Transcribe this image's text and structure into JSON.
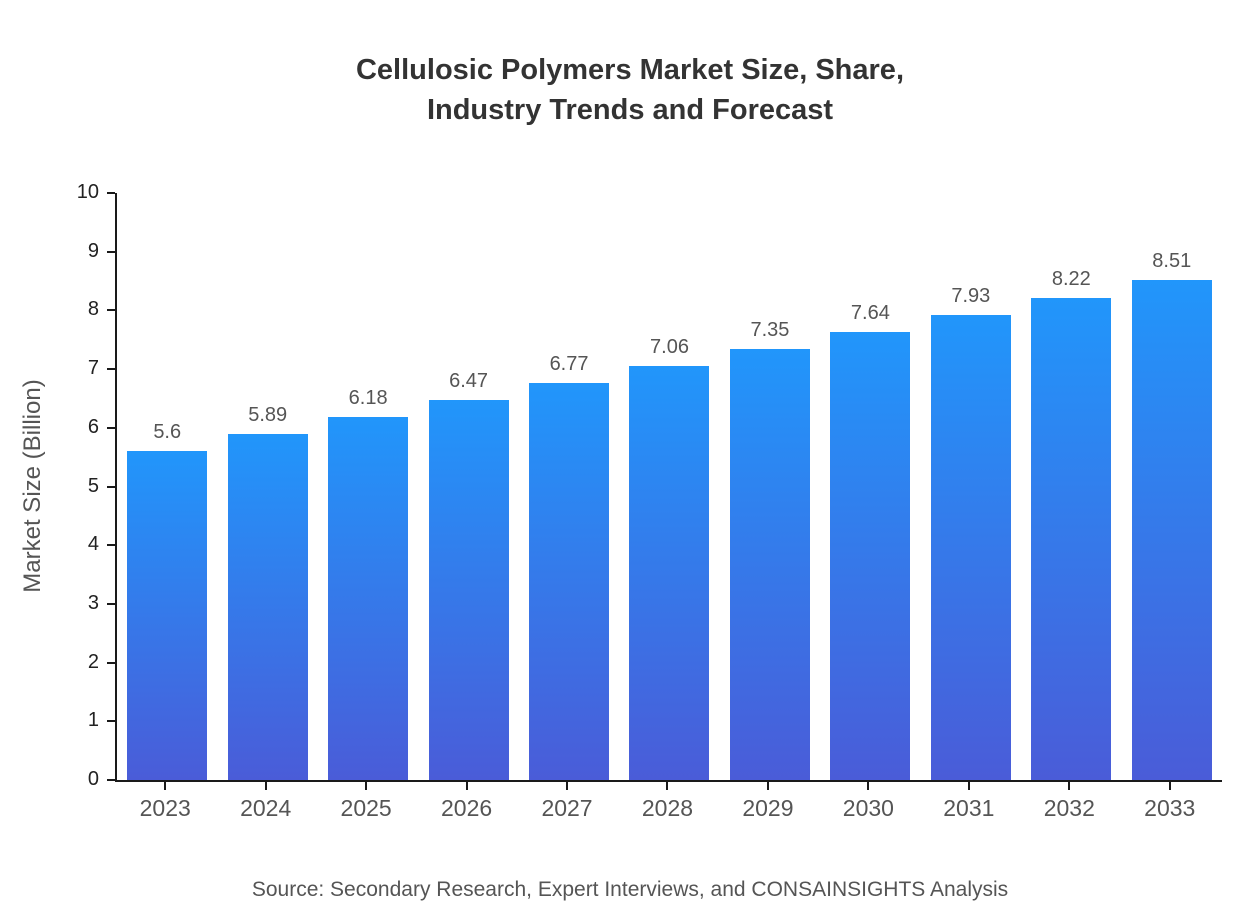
{
  "title": {
    "line1": "Cellulosic Polymers Market Size, Share,",
    "line2": "Industry Trends and Forecast"
  },
  "source": "Source: Secondary Research, Expert Interviews, and CONSAINSIGHTS Analysis",
  "chart_data": {
    "type": "bar",
    "title": "Cellulosic Polymers Market Size, Share, Industry Trends and Forecast",
    "categories": [
      "2023",
      "2024",
      "2025",
      "2026",
      "2027",
      "2028",
      "2029",
      "2030",
      "2031",
      "2032",
      "2033"
    ],
    "values": [
      5.6,
      5.89,
      6.18,
      6.47,
      6.77,
      7.06,
      7.35,
      7.64,
      7.93,
      8.22,
      8.51
    ],
    "xlabel": "",
    "ylabel": "Market Size (Billion)",
    "ylim": [
      0,
      10
    ],
    "ytick_step": 1,
    "grid": false,
    "legend": false,
    "colors": {
      "bar_gradient_top": "#2196fb",
      "bar_gradient_bottom": "#4a5cd8",
      "axis": "#1a1a1a",
      "title_text": "#333333",
      "label_text": "#555555",
      "ytick_text": "#222222"
    }
  }
}
